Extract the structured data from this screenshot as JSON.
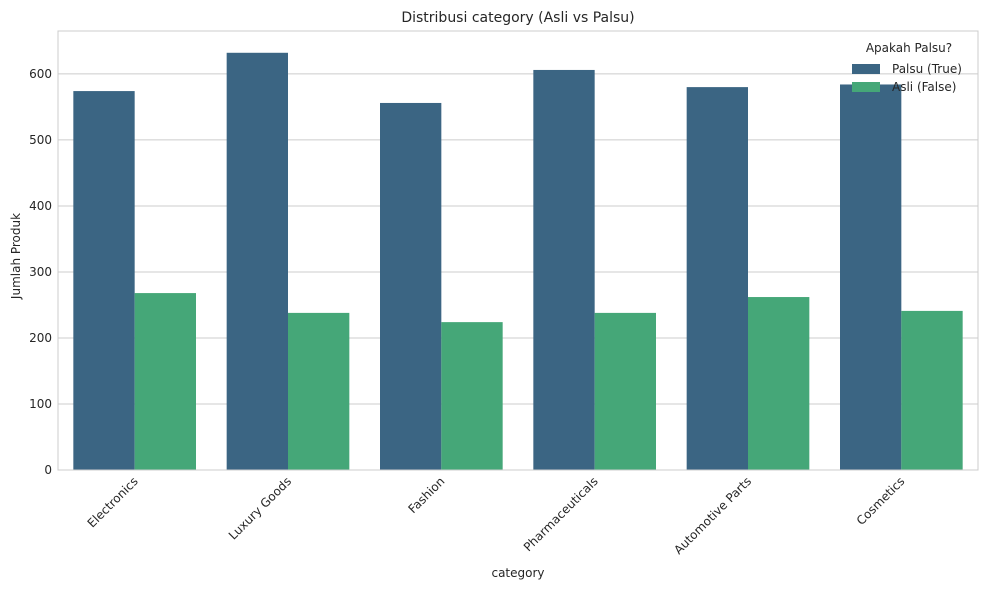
{
  "chart_data": {
    "type": "bar",
    "title": "Distribusi category (Asli vs Palsu)",
    "xlabel": "category",
    "ylabel": "Jumlah Produk",
    "categories": [
      "Electronics",
      "Luxury Goods",
      "Fashion",
      "Pharmaceuticals",
      "Automotive Parts",
      "Cosmetics"
    ],
    "series": [
      {
        "name": "Palsu (True)",
        "color": "#3b6583",
        "values": [
          574,
          632,
          556,
          606,
          580,
          584
        ]
      },
      {
        "name": "Asli (False)",
        "color": "#45a778",
        "values": [
          268,
          238,
          224,
          238,
          262,
          241
        ]
      }
    ],
    "ylim": [
      0,
      665
    ],
    "yticks": [
      0,
      100,
      200,
      300,
      400,
      500,
      600
    ],
    "legend": {
      "title": "Apakah Palsu?",
      "position": "top-right"
    },
    "grid": true
  }
}
